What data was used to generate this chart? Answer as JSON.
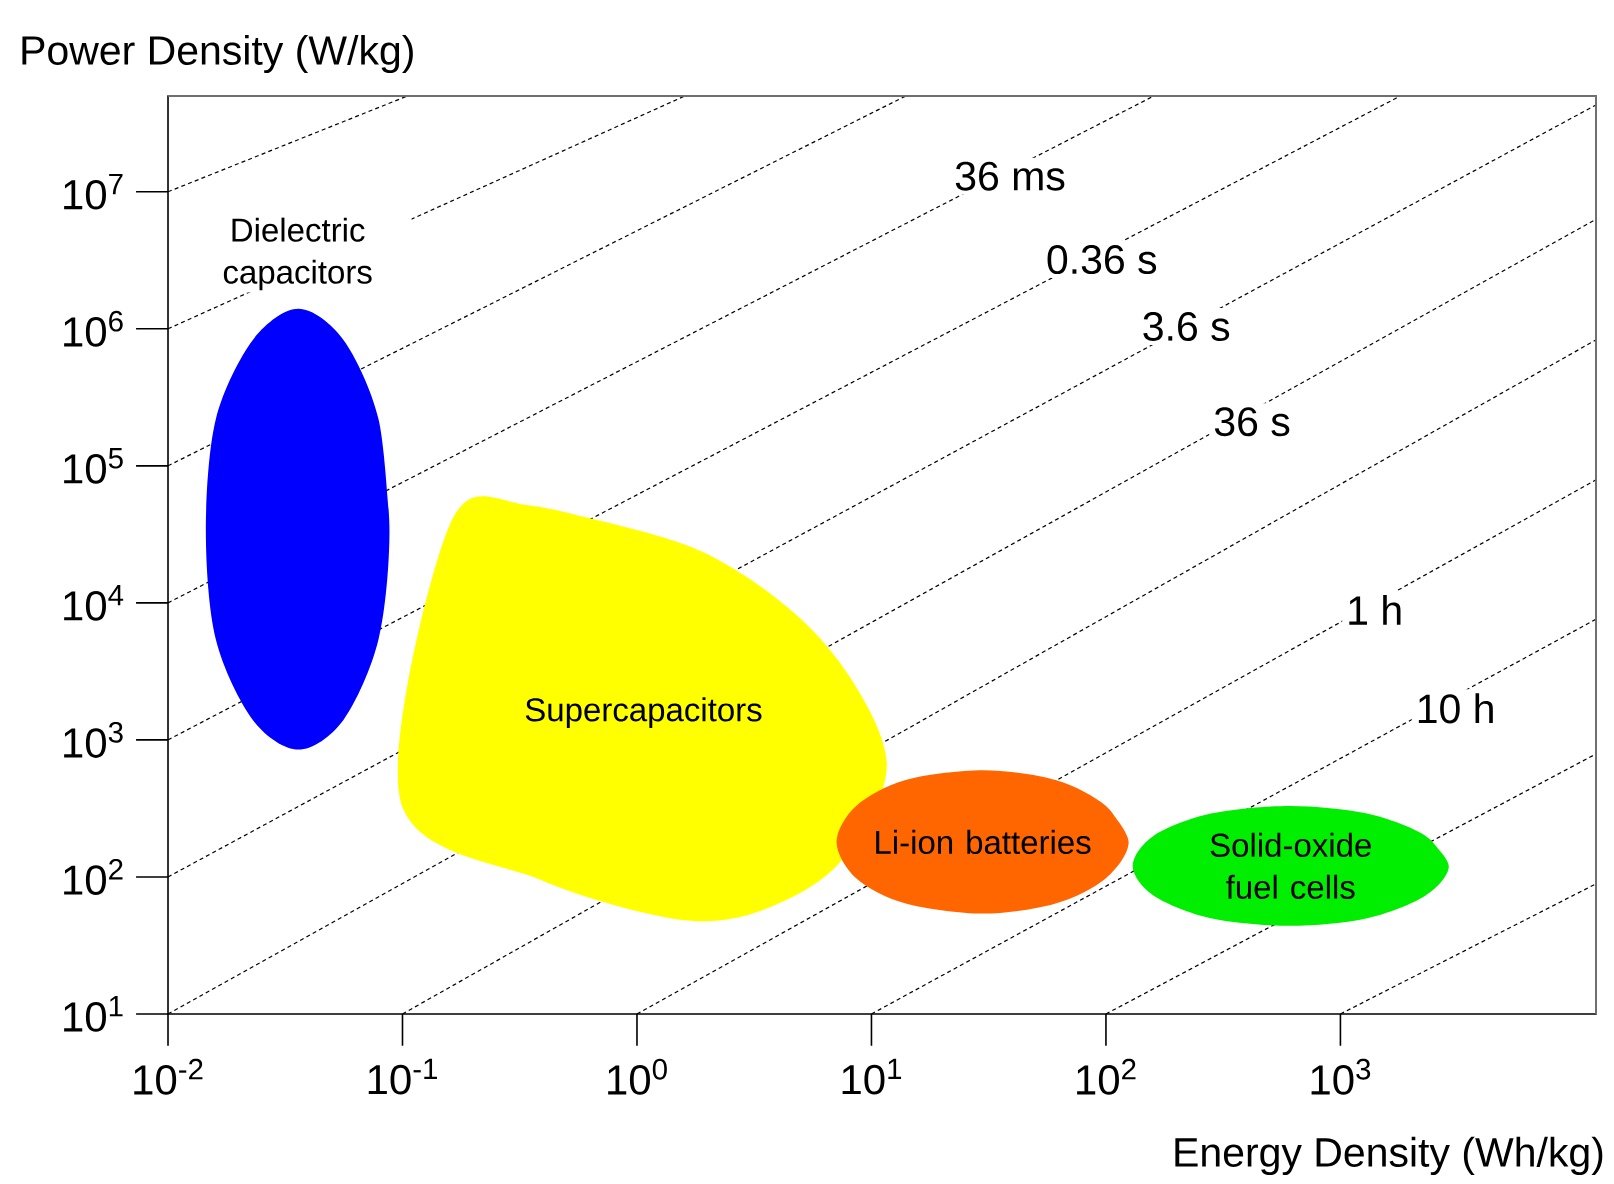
{
  "chart_data": {
    "type": "area",
    "xlabel": "Energy Density (Wh/kg)",
    "ylabel": "Power Density (W/kg)",
    "log": "xy",
    "grid": false,
    "line_style": "dashed",
    "xlim": [
      0.01,
      12300
    ],
    "ylim": [
      10,
      50000000
    ],
    "xticks": [
      {
        "value": 0.01,
        "label": "10$^{-2}$"
      },
      {
        "value": 0.1,
        "label": "10$^{-1}$"
      },
      {
        "value": 1,
        "label": "10$^{0}$"
      },
      {
        "value": 10,
        "label": "10$^{1}$"
      },
      {
        "value": 100,
        "label": "10$^{2}$"
      },
      {
        "value": 1000,
        "label": "10$^{3}$"
      }
    ],
    "yticks": [
      {
        "value": 10,
        "label": "10$^{1}$"
      },
      {
        "value": 100,
        "label": "10$^{2}$"
      },
      {
        "value": 1000,
        "label": "10$^{3}$"
      },
      {
        "value": 10000,
        "label": "10$^{4}$"
      },
      {
        "value": 100000,
        "label": "10$^{5}$"
      },
      {
        "value": 1000000,
        "label": "10$^{6}$"
      },
      {
        "value": 10000000,
        "label": "10$^{7}$"
      }
    ],
    "series": [
      {
        "type": "line",
        "color": "#000000",
        "x": [
          1000,
          12300
        ],
        "values": [
          10,
          89
        ]
      },
      {
        "type": "line",
        "color": "#000000",
        "x": [
          100,
          12300
        ],
        "values": [
          10,
          790
        ]
      },
      {
        "type": "line",
        "color": "#000000",
        "x": [
          10,
          12300
        ],
        "values": [
          10,
          7600
        ]
      },
      {
        "type": "line",
        "color": "#000000",
        "x": [
          1,
          12300
        ],
        "values": [
          10,
          79000
        ]
      },
      {
        "type": "line",
        "color": "#000000",
        "x": [
          0.1,
          12300
        ],
        "values": [
          10,
          830000
        ]
      },
      {
        "type": "line",
        "color": "#000000",
        "x": [
          0.01,
          12300
        ],
        "values": [
          10,
          6300000
        ]
      },
      {
        "type": "line",
        "color": "#000000",
        "x": [
          0.01,
          12300
        ],
        "values": [
          100,
          43000000
        ]
      },
      {
        "type": "line",
        "color": "#000000",
        "x": [
          0.01,
          1800
        ],
        "values": [
          1000,
          50000000
        ]
      },
      {
        "type": "line",
        "color": "#000000",
        "x": [
          0.01,
          160
        ],
        "values": [
          10000,
          50000000
        ]
      },
      {
        "type": "line",
        "color": "#000000",
        "x": [
          0.01,
          14
        ],
        "values": [
          100000,
          50000000
        ]
      },
      {
        "type": "line",
        "color": "#000000",
        "x": [
          0.01,
          1.6
        ],
        "values": [
          1000000,
          50000000
        ]
      },
      {
        "type": "line",
        "color": "#000000",
        "x": [
          0.01,
          0.105
        ],
        "values": [
          10000000,
          50000000
        ]
      },
      {
        "name": "Supercapacitors",
        "color": "#ffff00",
        "x": [
          0.36,
          1.86,
          6.1,
          11.6,
          7.4,
          3.4,
          1.5,
          0.39,
          0.098,
          0.16
        ],
        "values": [
          51000,
          24000,
          5400,
          710,
          130,
          57,
          49,
          95,
          360,
          38000
        ]
      },
      {
        "name": "Dielectric capacitors",
        "color": "#0000ff",
        "x": [
          0.088,
          0.079,
          0.056,
          0.036,
          0.023,
          0.016,
          0.0145,
          0.016,
          0.023,
          0.036,
          0.056,
          0.079
        ],
        "values": [
          34000,
          220000,
          830000,
          1400000,
          830000,
          220000,
          34000,
          5400,
          1400,
          850,
          1400,
          5400
        ]
      },
      {
        "name": "Li-ion batteries",
        "color": "#ff6600",
        "x": [
          125,
          100,
          61,
          30,
          14,
          8.6,
          7.1,
          8.6,
          14,
          30,
          61,
          100
        ],
        "values": [
          180,
          330,
          510,
          600,
          510,
          330,
          180,
          98,
          64,
          54,
          64,
          98
        ]
      },
      {
        "name": "Solid-oxide fuel cells",
        "color": "#00ee00",
        "x": [
          2900,
          2300,
          1300,
          610,
          280,
          160,
          130,
          160,
          280,
          610,
          1300,
          2300
        ],
        "values": [
          120,
          200,
          290,
          330,
          290,
          200,
          120,
          73,
          50,
          44,
          50,
          73
        ]
      }
    ],
    "annotations": [
      {
        "text": "36 ms",
        "x": 39,
        "y": 13000000
      },
      {
        "text": "0.36 s",
        "x": 96,
        "y": 3200000
      },
      {
        "text": "3.6 s",
        "x": 220,
        "y": 1040000
      },
      {
        "text": "36 s",
        "x": 420,
        "y": 210000
      },
      {
        "text": "1 h",
        "x": 1400,
        "y": 8900
      },
      {
        "text": "10 h",
        "x": 3100,
        "y": 1700
      }
    ]
  }
}
